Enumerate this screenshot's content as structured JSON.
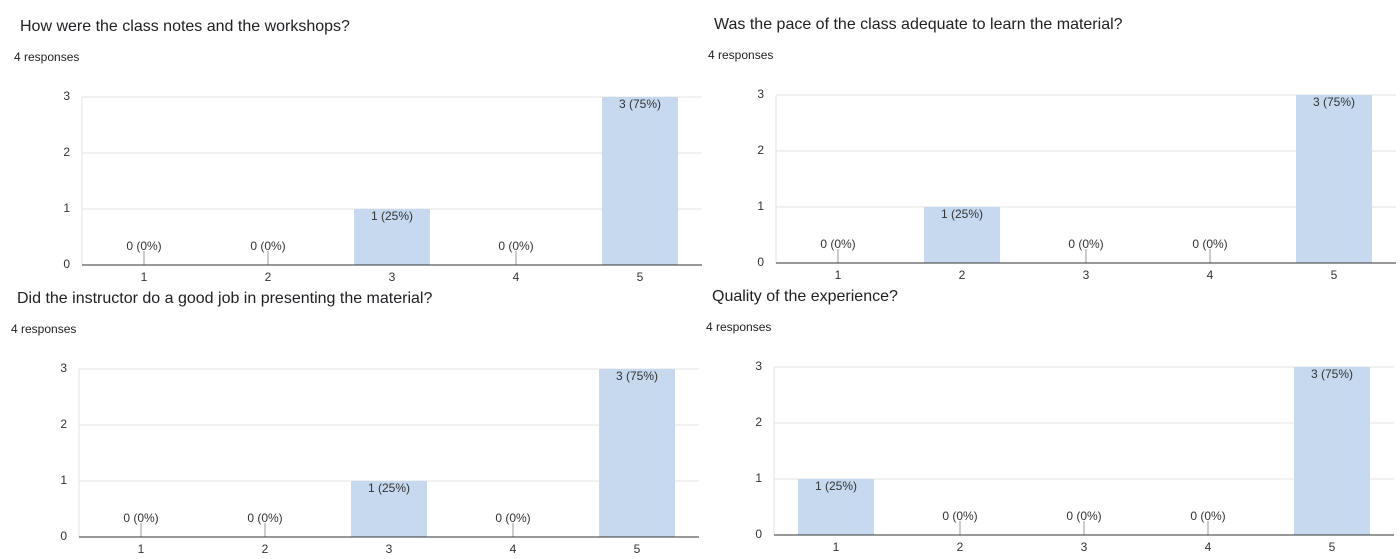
{
  "chart_data": [
    {
      "type": "bar",
      "title": "How were the class notes and the workshops?",
      "subtitle": "4 responses",
      "categories": [
        "1",
        "2",
        "3",
        "4",
        "5"
      ],
      "values": [
        0,
        0,
        1,
        0,
        3
      ],
      "value_labels": [
        "0 (0%)",
        "0 (0%)",
        "1 (25%)",
        "0 (0%)",
        "3 (75%)"
      ],
      "color": "#c6d9ef",
      "ylim": [
        0,
        3
      ],
      "yticks": [
        0,
        1,
        2,
        3
      ],
      "grid": true
    },
    {
      "type": "bar",
      "title": "Was the pace of the class adequate to learn the material?",
      "subtitle": "4 responses",
      "categories": [
        "1",
        "2",
        "3",
        "4",
        "5"
      ],
      "values": [
        0,
        1,
        0,
        0,
        3
      ],
      "value_labels": [
        "0 (0%)",
        "1 (25%)",
        "0 (0%)",
        "0 (0%)",
        "3 (75%)"
      ],
      "color": "#c6d9ef",
      "ylim": [
        0,
        3
      ],
      "yticks": [
        0,
        1,
        2,
        3
      ],
      "grid": true
    },
    {
      "type": "bar",
      "title": "Did the instructor do a good job in presenting the material?",
      "subtitle": "4 responses",
      "categories": [
        "1",
        "2",
        "3",
        "4",
        "5"
      ],
      "values": [
        0,
        0,
        1,
        0,
        3
      ],
      "value_labels": [
        "0 (0%)",
        "0 (0%)",
        "1 (25%)",
        "0 (0%)",
        "3 (75%)"
      ],
      "color": "#c6d9ef",
      "ylim": [
        0,
        3
      ],
      "yticks": [
        0,
        1,
        2,
        3
      ],
      "grid": true
    },
    {
      "type": "bar",
      "title": "Quality of the experience?",
      "subtitle": "4 responses",
      "categories": [
        "1",
        "2",
        "3",
        "4",
        "5"
      ],
      "values": [
        1,
        0,
        0,
        0,
        3
      ],
      "value_labels": [
        "1 (25%)",
        "0 (0%)",
        "0 (0%)",
        "0 (0%)",
        "3 (75%)"
      ],
      "color": "#c6d9ef",
      "ylim": [
        0,
        3
      ],
      "yticks": [
        0,
        1,
        2,
        3
      ],
      "grid": true
    }
  ]
}
